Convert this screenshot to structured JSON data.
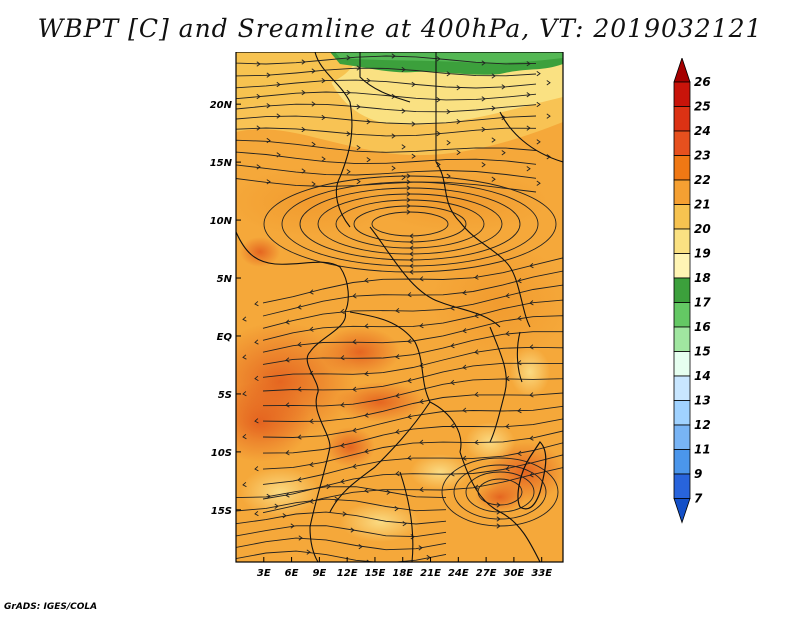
{
  "title": "WBPT [C] and Sreamline at 400hPa, VT: 2019032121",
  "credit": "GrADS: IGES/COLA",
  "map": {
    "lat_labels": [
      "20N",
      "15N",
      "10N",
      "5N",
      "EQ",
      "5S",
      "10S",
      "15S"
    ],
    "lat_values": [
      20,
      15,
      10,
      5,
      0,
      -5,
      -10,
      -15
    ],
    "lon_labels": [
      "3E",
      "6E",
      "9E",
      "12E",
      "15E",
      "18E",
      "21E",
      "24E",
      "27E",
      "30E",
      "33E"
    ],
    "lon_values": [
      3,
      6,
      9,
      12,
      15,
      18,
      21,
      24,
      27,
      30,
      33
    ],
    "lat_range": [
      -19.5,
      24.5
    ],
    "lon_range": [
      0,
      35.3
    ]
  },
  "colorbar": {
    "labels": [
      "26",
      "25",
      "24",
      "23",
      "22",
      "21",
      "20",
      "19",
      "18",
      "17",
      "16",
      "15",
      "14",
      "13",
      "12",
      "11",
      "9",
      "7"
    ],
    "colors": [
      "#a50000",
      "#c8140a",
      "#dc3214",
      "#e6501e",
      "#f07814",
      "#f5a032",
      "#f7c350",
      "#fae182",
      "#fff5b4",
      "#3ca03c",
      "#64c864",
      "#a0e6a0",
      "#e6fff0",
      "#c8e6ff",
      "#a0d2ff",
      "#78b4f5",
      "#4b96eb",
      "#2864dc",
      "#1450c8"
    ]
  }
}
